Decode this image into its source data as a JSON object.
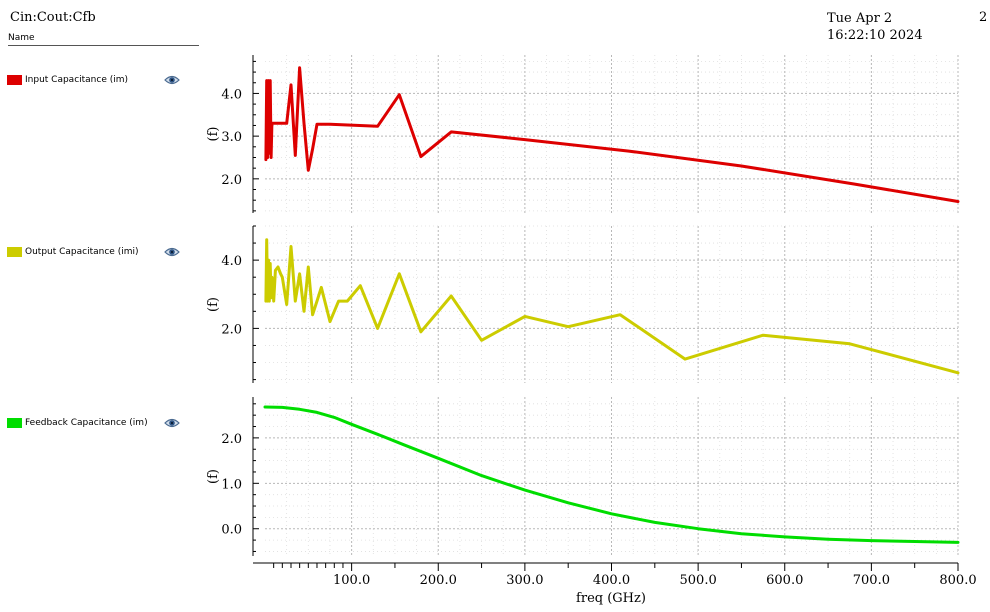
{
  "header": {
    "title": "Cin:Cout:Cfb",
    "date": "Tue Apr 2 16:22:10 2024",
    "page": "2"
  },
  "legend": {
    "header": "Name",
    "items": [
      {
        "label": "Input Capacitance (im)",
        "color": "#dd0000",
        "icon": "eye-icon"
      },
      {
        "label": "Output Capacitance (imi)",
        "color": "#cccc00",
        "icon": "eye-icon"
      },
      {
        "label": "Feedback Capacitance (im)",
        "color": "#00dd00",
        "icon": "eye-icon"
      }
    ]
  },
  "chart_data": {
    "type": "line",
    "xlabel": "freq (GHz)",
    "xlim": [
      0,
      800
    ],
    "xticks": [
      100,
      200,
      300,
      400,
      500,
      600,
      700,
      800
    ],
    "xtick_labels": [
      "100.0",
      "200.0",
      "300.0",
      "400.0",
      "500.0",
      "600.0",
      "700.0",
      "800.0"
    ],
    "grid": true,
    "panels": [
      {
        "ylabel": "(f)",
        "ylim": [
          1.2,
          4.9
        ],
        "yticks": [
          2.0,
          3.0,
          4.0
        ],
        "ytick_labels": [
          "2.0",
          "3.0",
          "4.0"
        ],
        "series": {
          "name": "Input Capacitance (im)",
          "color": "#dd0000",
          "x": [
            1,
            2,
            3,
            4,
            5,
            6,
            7,
            8,
            9,
            10,
            11,
            12,
            13,
            15,
            20,
            25,
            30,
            35,
            40,
            45,
            50,
            55,
            60,
            65,
            70,
            75,
            130,
            155,
            180,
            215,
            300,
            420,
            550,
            680,
            800
          ],
          "y": [
            2.45,
            4.3,
            2.5,
            4.3,
            2.6,
            4.3,
            2.5,
            3.3,
            3.3,
            3.3,
            3.3,
            3.3,
            3.3,
            3.3,
            3.3,
            3.3,
            4.2,
            2.55,
            4.6,
            3.3,
            2.2,
            2.7,
            3.28,
            3.28,
            3.28,
            3.28,
            3.23,
            3.97,
            2.52,
            3.1,
            2.92,
            2.65,
            2.3,
            1.88,
            1.47
          ]
        }
      },
      {
        "ylabel": "(f)",
        "ylim": [
          0.4,
          5.0
        ],
        "yticks": [
          2.0,
          4.0
        ],
        "ytick_labels": [
          "2.0",
          "4.0"
        ],
        "series": {
          "name": "Output Capacitance (imi)",
          "color": "#cccc00",
          "x": [
            1,
            2,
            3,
            4,
            5,
            6,
            7,
            8,
            9,
            10,
            12,
            15,
            18,
            20,
            25,
            30,
            35,
            40,
            45,
            50,
            55,
            60,
            65,
            75,
            85,
            95,
            110,
            130,
            155,
            180,
            215,
            250,
            300,
            350,
            410,
            485,
            575,
            675,
            800
          ],
          "y": [
            2.8,
            4.6,
            2.8,
            4.0,
            2.8,
            3.9,
            2.9,
            3.5,
            3.3,
            2.8,
            3.7,
            3.8,
            3.6,
            3.5,
            2.7,
            4.4,
            2.8,
            3.6,
            2.5,
            3.8,
            2.4,
            2.8,
            3.2,
            2.2,
            2.8,
            2.8,
            3.25,
            2.0,
            3.6,
            1.9,
            2.95,
            1.65,
            2.35,
            2.05,
            2.4,
            1.1,
            1.8,
            1.55,
            0.7
          ]
        }
      },
      {
        "ylabel": "(f)",
        "ylim": [
          -0.6,
          2.9
        ],
        "yticks": [
          0.0,
          1.0,
          2.0
        ],
        "ytick_labels": [
          "0.0",
          "1.0",
          "2.0"
        ],
        "series": {
          "name": "Feedback Capacitance (im)",
          "color": "#00dd00",
          "x": [
            0,
            20,
            40,
            60,
            80,
            100,
            130,
            160,
            200,
            250,
            300,
            350,
            400,
            450,
            500,
            550,
            600,
            650,
            700,
            750,
            800
          ],
          "y": [
            2.68,
            2.67,
            2.63,
            2.56,
            2.45,
            2.3,
            2.08,
            1.85,
            1.55,
            1.17,
            0.85,
            0.57,
            0.33,
            0.14,
            0.0,
            -0.11,
            -0.18,
            -0.23,
            -0.26,
            -0.28,
            -0.3
          ]
        }
      }
    ]
  }
}
